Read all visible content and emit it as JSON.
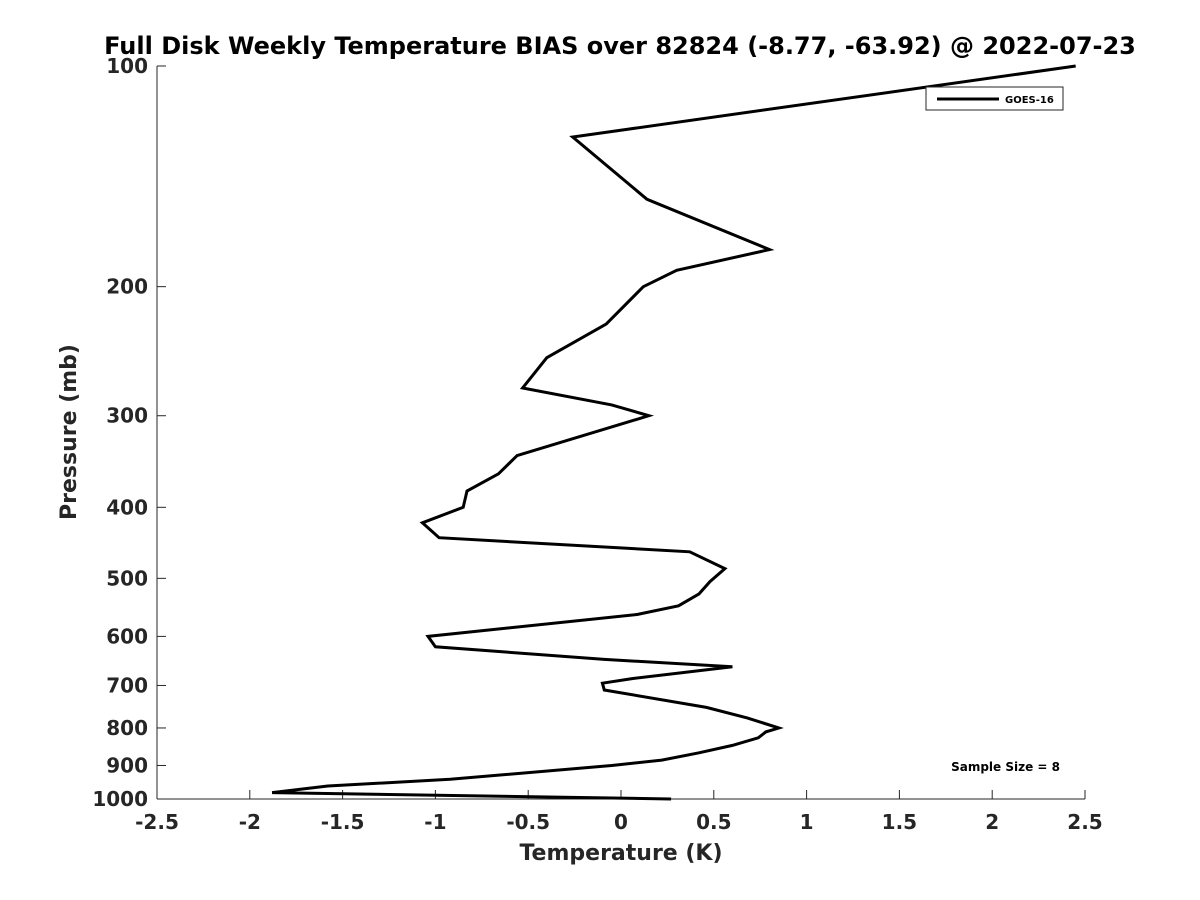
{
  "chart_data": {
    "type": "line",
    "title": "Full Disk Weekly Temperature BIAS over 82824 (-8.77, -63.92) @ 2022-07-23",
    "xlabel": "Temperature (K)",
    "ylabel": "Pressure (mb)",
    "xlim": [
      -2.5,
      2.5
    ],
    "ylim": [
      100,
      1000
    ],
    "y_scale": "log",
    "y_reversed": true,
    "x_ticks": [
      -2.5,
      -2,
      -1.5,
      -1,
      -0.5,
      0,
      0.5,
      1,
      1.5,
      2,
      2.5
    ],
    "x_tick_labels": [
      "-2.5",
      "-2",
      "-1.5",
      "-1",
      "-0.5",
      "0",
      "0.5",
      "1",
      "1.5",
      "2",
      "2.5"
    ],
    "y_ticks": [
      100,
      200,
      300,
      400,
      500,
      600,
      700,
      800,
      900,
      1000
    ],
    "y_tick_labels": [
      "100",
      "200",
      "300",
      "400",
      "500",
      "600",
      "700",
      "800",
      "900",
      "1000"
    ],
    "grid": false,
    "legend_position": "top-right",
    "line_color": "#000000",
    "series": [
      {
        "name": "GOES-16",
        "points": [
          {
            "x": 2.45,
            "y": 100
          },
          {
            "x": -0.26,
            "y": 125
          },
          {
            "x": 0.14,
            "y": 152
          },
          {
            "x": 0.8,
            "y": 178
          },
          {
            "x": 0.3,
            "y": 190
          },
          {
            "x": 0.12,
            "y": 200
          },
          {
            "x": -0.08,
            "y": 225
          },
          {
            "x": -0.4,
            "y": 250
          },
          {
            "x": -0.53,
            "y": 275
          },
          {
            "x": -0.05,
            "y": 290
          },
          {
            "x": 0.15,
            "y": 300
          },
          {
            "x": -0.56,
            "y": 340
          },
          {
            "x": -0.66,
            "y": 360
          },
          {
            "x": -0.83,
            "y": 380
          },
          {
            "x": -0.85,
            "y": 400
          },
          {
            "x": -1.07,
            "y": 420
          },
          {
            "x": -0.98,
            "y": 440
          },
          {
            "x": 0.37,
            "y": 460
          },
          {
            "x": 0.56,
            "y": 485
          },
          {
            "x": 0.48,
            "y": 505
          },
          {
            "x": 0.42,
            "y": 525
          },
          {
            "x": 0.31,
            "y": 545
          },
          {
            "x": 0.09,
            "y": 560
          },
          {
            "x": -1.04,
            "y": 600
          },
          {
            "x": -1.0,
            "y": 620
          },
          {
            "x": -0.09,
            "y": 645
          },
          {
            "x": 0.6,
            "y": 660
          },
          {
            "x": 0.06,
            "y": 685
          },
          {
            "x": -0.1,
            "y": 695
          },
          {
            "x": -0.09,
            "y": 710
          },
          {
            "x": 0.46,
            "y": 750
          },
          {
            "x": 0.68,
            "y": 775
          },
          {
            "x": 0.85,
            "y": 800
          },
          {
            "x": 0.78,
            "y": 810
          },
          {
            "x": 0.74,
            "y": 825
          },
          {
            "x": 0.6,
            "y": 845
          },
          {
            "x": 0.42,
            "y": 865
          },
          {
            "x": 0.22,
            "y": 885
          },
          {
            "x": -0.05,
            "y": 900
          },
          {
            "x": -0.92,
            "y": 940
          },
          {
            "x": -1.58,
            "y": 960
          },
          {
            "x": -1.88,
            "y": 980
          },
          {
            "x": 0.27,
            "y": 1000
          }
        ]
      }
    ],
    "annotation": "Sample Size = 8"
  }
}
